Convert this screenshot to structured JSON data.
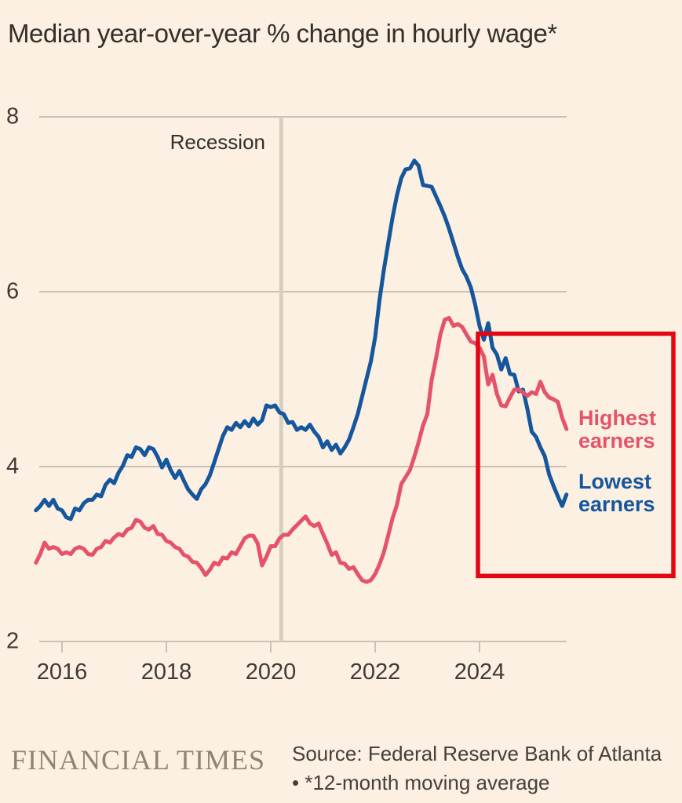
{
  "title": "Median year-over-year % change in hourly wage*",
  "colors": {
    "background": "#fbf0e1",
    "grid": "#c9c3b5",
    "recession_band": "#d6cfc0",
    "lowest_earners_line": "#15569c",
    "highest_earners_line": "#e4536a",
    "highlight_box": "#e30613",
    "text_dark": "#33302a",
    "brand_gray": "#8d8474"
  },
  "footer": {
    "brand": "FINANCIAL TIMES",
    "source_line1": "Source: Federal Reserve Bank of Atlanta",
    "source_line2": "• *12-month moving average"
  },
  "chart_data": {
    "type": "line",
    "title": "Median year-over-year % change in hourly wage*",
    "xlabel": "",
    "ylabel": "",
    "x_ticks": [
      2016,
      2018,
      2020,
      2022,
      2024
    ],
    "y_ticks": [
      8,
      6,
      4,
      2
    ],
    "x_range": [
      2015.5,
      2025.67
    ],
    "y_range": [
      2,
      8
    ],
    "grid": "horizontal",
    "legend_position": "right-inline",
    "annotations": {
      "recession": {
        "label": "Recession",
        "year": 2020.2
      },
      "highlight_box": {
        "from_year": 2023.97,
        "value_low": 2.75,
        "value_high": 5.52,
        "note": "red box highlighting period from 2024 onward"
      }
    },
    "series": [
      {
        "name": "Lowest earners",
        "color": "#15569c",
        "start_year": 2015.5,
        "step_months": 1,
        "values": [
          3.5,
          3.55,
          3.62,
          3.55,
          3.62,
          3.52,
          3.5,
          3.42,
          3.4,
          3.52,
          3.5,
          3.58,
          3.62,
          3.62,
          3.68,
          3.66,
          3.79,
          3.85,
          3.81,
          3.93,
          4.01,
          4.13,
          4.11,
          4.22,
          4.2,
          4.13,
          4.22,
          4.2,
          4.11,
          3.99,
          4.08,
          3.96,
          3.87,
          3.95,
          3.84,
          3.74,
          3.68,
          3.63,
          3.74,
          3.8,
          3.9,
          4.05,
          4.2,
          4.35,
          4.45,
          4.42,
          4.5,
          4.45,
          4.52,
          4.46,
          4.55,
          4.48,
          4.53,
          4.7,
          4.68,
          4.7,
          4.62,
          4.6,
          4.5,
          4.51,
          4.42,
          4.45,
          4.42,
          4.48,
          4.4,
          4.34,
          4.22,
          4.29,
          4.19,
          4.25,
          4.15,
          4.22,
          4.31,
          4.45,
          4.6,
          4.8,
          5.0,
          5.2,
          5.48,
          5.9,
          6.25,
          6.55,
          6.85,
          7.1,
          7.3,
          7.4,
          7.41,
          7.5,
          7.44,
          7.22,
          7.21,
          7.2,
          7.09,
          6.98,
          6.86,
          6.72,
          6.56,
          6.4,
          6.26,
          6.17,
          6.05,
          5.85,
          5.61,
          5.45,
          5.64,
          5.36,
          5.28,
          5.11,
          5.24,
          5.06,
          5.05,
          4.86,
          4.88,
          4.66,
          4.4,
          4.34,
          4.22,
          4.12,
          3.91,
          3.78,
          3.66,
          3.55,
          3.68
        ]
      },
      {
        "name": "Highest earners",
        "color": "#e4536a",
        "start_year": 2015.5,
        "step_months": 1,
        "values": [
          2.9,
          3.0,
          3.13,
          3.06,
          3.08,
          3.06,
          3.0,
          3.02,
          3.0,
          3.06,
          3.08,
          3.06,
          3.0,
          2.99,
          3.06,
          3.08,
          3.15,
          3.13,
          3.19,
          3.23,
          3.21,
          3.28,
          3.3,
          3.39,
          3.37,
          3.3,
          3.28,
          3.32,
          3.23,
          3.22,
          3.15,
          3.13,
          3.08,
          3.06,
          2.99,
          2.97,
          2.91,
          2.9,
          2.84,
          2.76,
          2.82,
          2.9,
          2.88,
          2.96,
          2.95,
          3.02,
          3.0,
          3.09,
          3.18,
          3.21,
          3.21,
          3.12,
          2.87,
          2.97,
          3.09,
          3.09,
          3.18,
          3.22,
          3.22,
          3.28,
          3.33,
          3.38,
          3.43,
          3.35,
          3.32,
          3.35,
          3.23,
          3.12,
          2.99,
          3.02,
          2.9,
          2.89,
          2.83,
          2.85,
          2.77,
          2.7,
          2.68,
          2.7,
          2.77,
          2.88,
          3.02,
          3.21,
          3.41,
          3.56,
          3.8,
          3.88,
          3.96,
          4.11,
          4.28,
          4.47,
          4.6,
          4.99,
          5.24,
          5.51,
          5.68,
          5.7,
          5.61,
          5.63,
          5.6,
          5.51,
          5.43,
          5.41,
          5.36,
          5.26,
          4.94,
          5.05,
          4.83,
          4.7,
          4.69,
          4.79,
          4.88,
          4.88,
          4.85,
          4.81,
          4.85,
          4.83,
          4.97,
          4.85,
          4.79,
          4.77,
          4.74,
          4.56,
          4.43
        ]
      }
    ]
  }
}
